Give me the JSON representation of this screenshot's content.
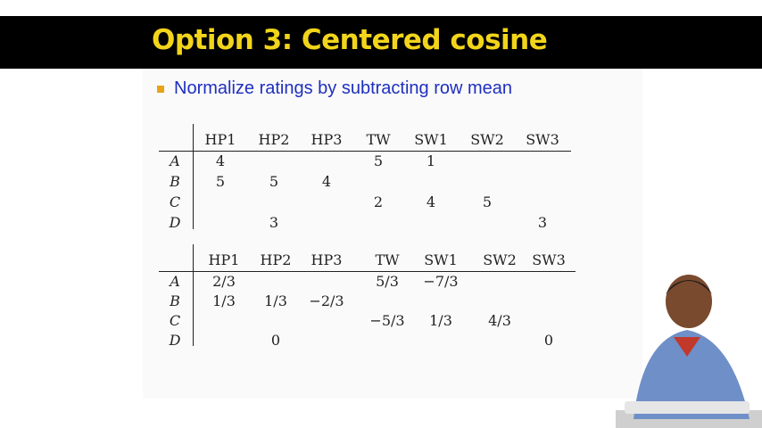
{
  "slide": {
    "title": "Option 3: Centered cosine",
    "bullet": "Normalize ratings by subtracting row mean"
  },
  "table1": {
    "columns": [
      "HP1",
      "HP2",
      "HP3",
      "TW",
      "SW1",
      "SW2",
      "SW3"
    ],
    "rows": [
      {
        "label": "A",
        "cells": [
          "4",
          "",
          "",
          "5",
          "1",
          "",
          ""
        ]
      },
      {
        "label": "B",
        "cells": [
          "5",
          "5",
          "4",
          "",
          "",
          "",
          ""
        ]
      },
      {
        "label": "C",
        "cells": [
          "",
          "",
          "",
          "2",
          "4",
          "5",
          ""
        ]
      },
      {
        "label": "D",
        "cells": [
          "",
          "3",
          "",
          "",
          "",
          "",
          "3"
        ]
      }
    ]
  },
  "table2": {
    "columns": [
      "HP1",
      "HP2",
      "HP3",
      "TW",
      "SW1",
      "SW2",
      "SW3"
    ],
    "rows": [
      {
        "label": "A",
        "cells": [
          "2/3",
          "",
          "",
          "5/3",
          "−7/3",
          "",
          ""
        ]
      },
      {
        "label": "B",
        "cells": [
          "1/3",
          "1/3",
          "−2/3",
          "",
          "",
          "",
          ""
        ]
      },
      {
        "label": "C",
        "cells": [
          "",
          "",
          "",
          "−5/3",
          "1/3",
          "4/3",
          ""
        ]
      },
      {
        "label": "D",
        "cells": [
          "",
          "0",
          "",
          "",
          "",
          "",
          "0"
        ]
      }
    ]
  }
}
